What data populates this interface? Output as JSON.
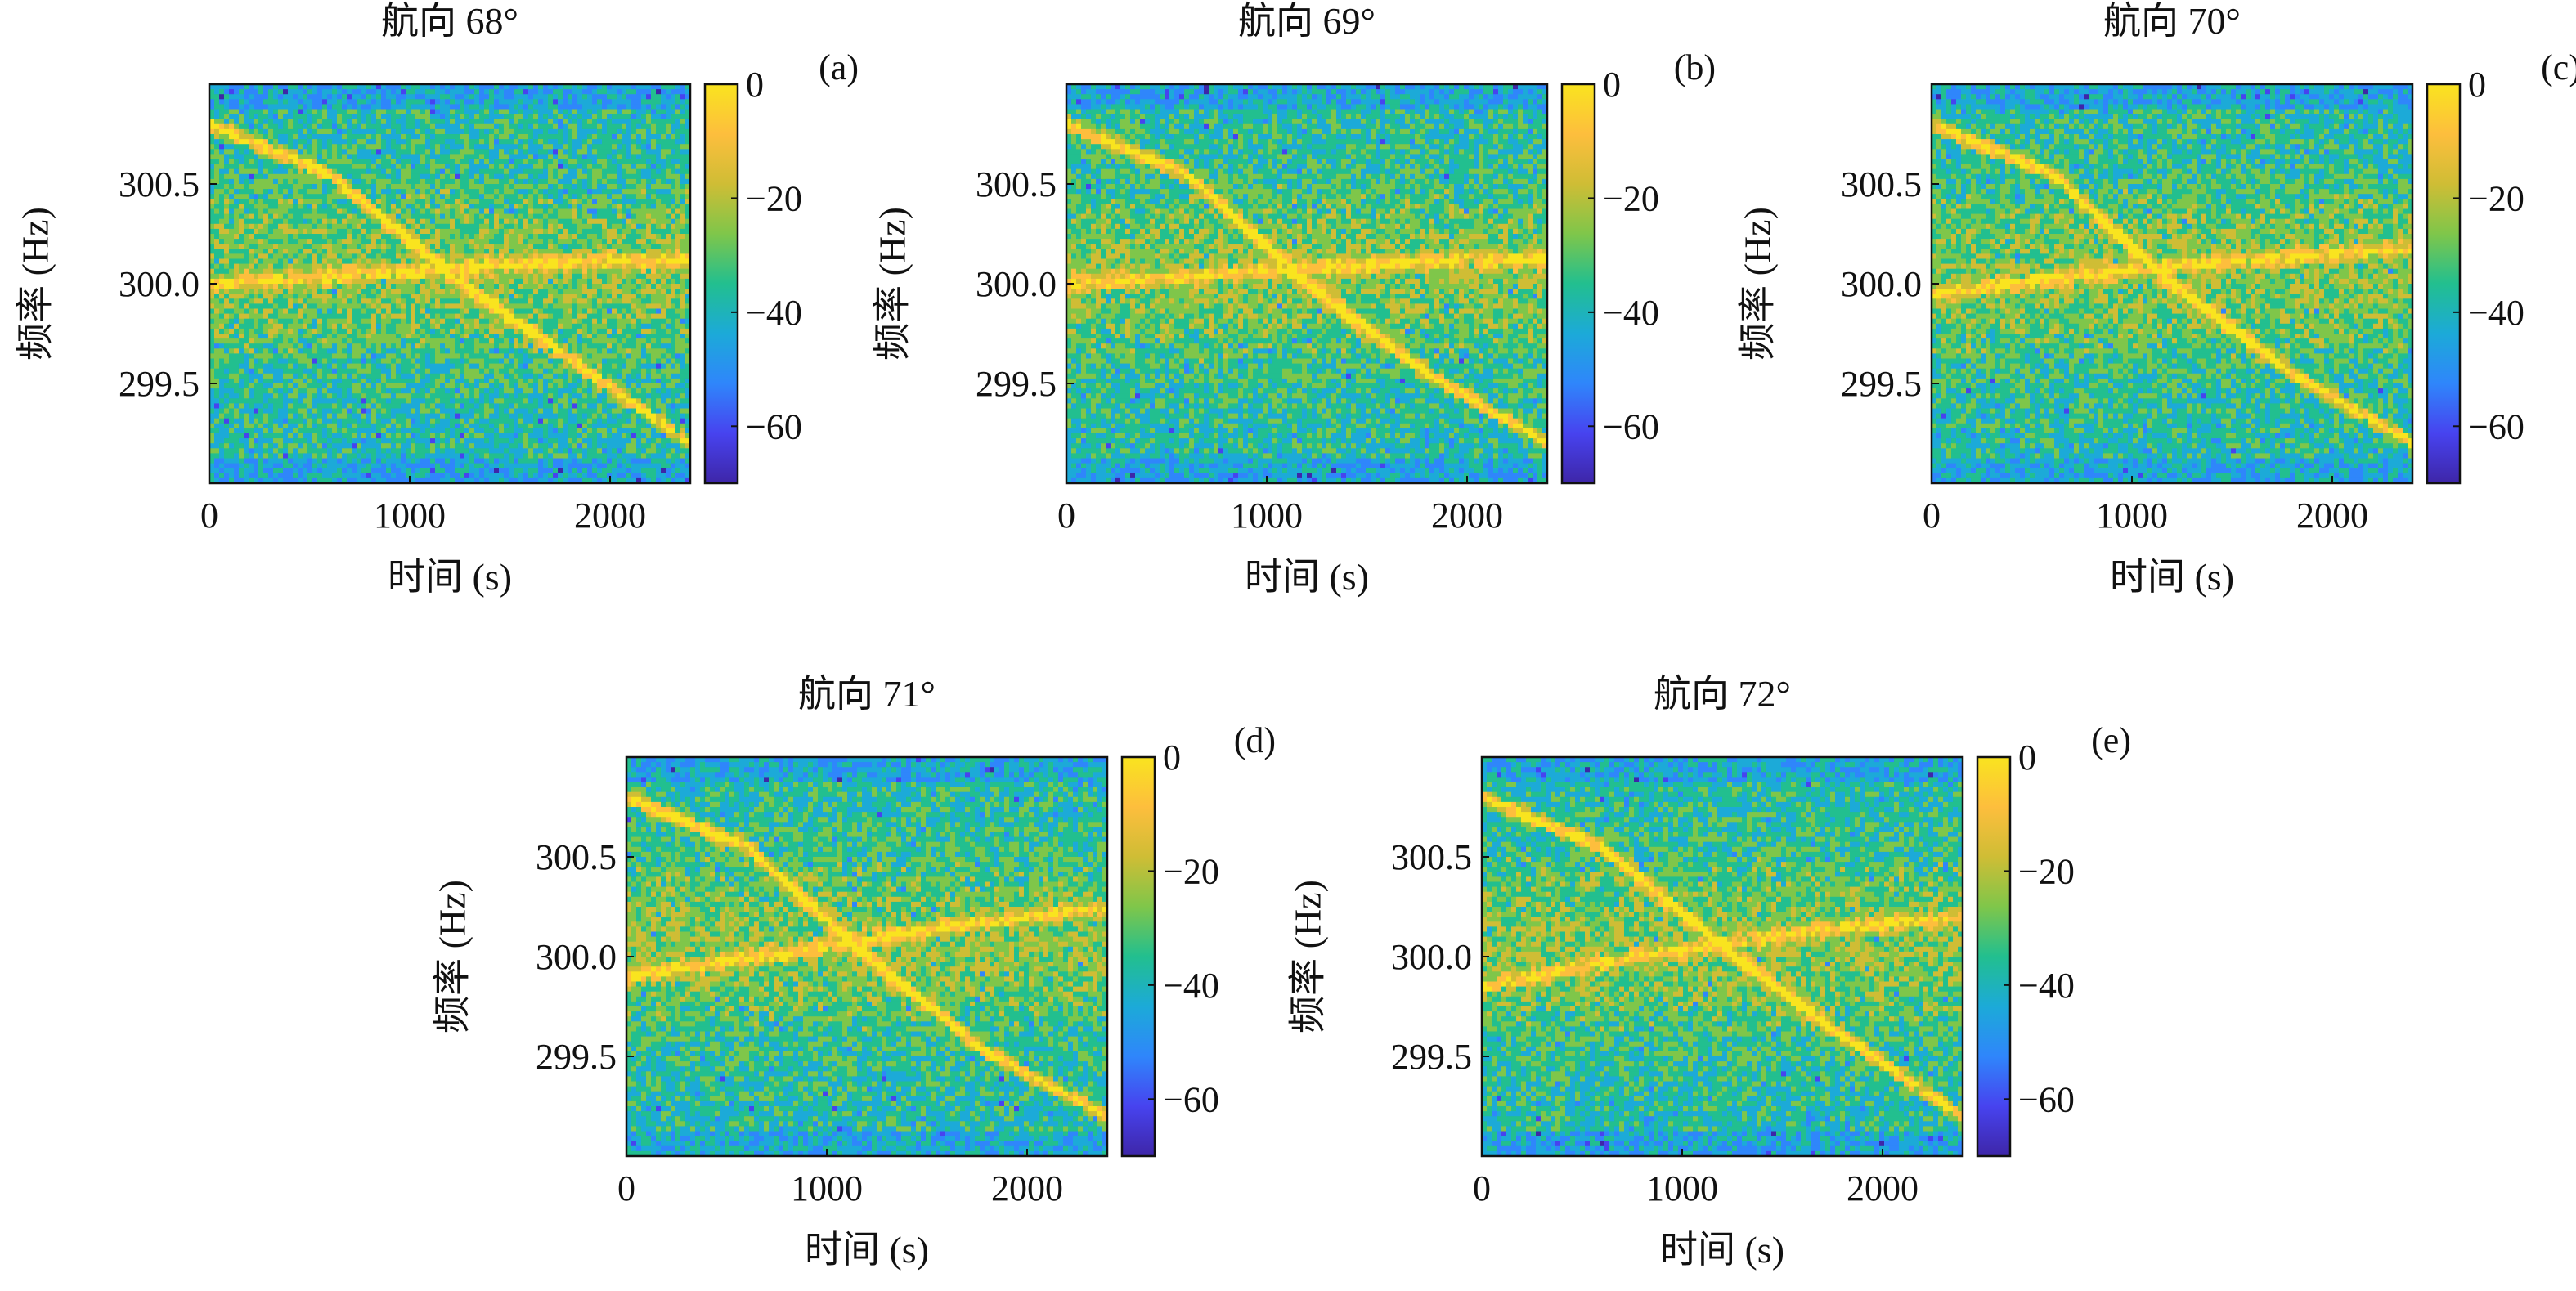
{
  "colormap": [
    "#3e26a8",
    "#4743ef",
    "#2f86fb",
    "#1caad8",
    "#22bf8f",
    "#7fc64a",
    "#cfbd35",
    "#fdbe3d",
    "#f9e41f"
  ],
  "chart_data": [
    {
      "type": "heatmap",
      "panel": "(a)",
      "title": "航向 68°",
      "xlabel": "时间 (s)",
      "ylabel": "频率 (Hz)",
      "xlim": [
        0,
        2400
      ],
      "ylim": [
        299.0,
        301.0
      ],
      "xticks": [
        0,
        1000,
        2000
      ],
      "xtick_labels": [
        "0",
        "1000",
        "2000"
      ],
      "yticks": [
        299.5,
        300.0,
        300.5
      ],
      "ytick_labels": [
        "299.5",
        "300.0",
        "300.5"
      ],
      "colorbar": {
        "ticks": [
          0,
          -20,
          -40,
          -60
        ],
        "tick_labels": [
          "0",
          "−20",
          "−40",
          "−60"
        ],
        "range": [
          -70,
          0
        ]
      },
      "ridge_lines": [
        {
          "x": [
            0,
            600,
            1200,
            1800,
            2400
          ],
          "y": [
            300.8,
            300.55,
            300.05,
            299.62,
            299.2
          ]
        },
        {
          "x": [
            0,
            800,
            1600,
            2400
          ],
          "y": [
            300.0,
            300.05,
            300.1,
            300.12
          ]
        }
      ]
    },
    {
      "type": "heatmap",
      "panel": "(b)",
      "title": "航向 69°",
      "xlabel": "时间 (s)",
      "ylabel": "频率 (Hz)",
      "xlim": [
        0,
        2400
      ],
      "ylim": [
        299.0,
        301.0
      ],
      "xticks": [
        0,
        1000,
        2000
      ],
      "xtick_labels": [
        "0",
        "1000",
        "2000"
      ],
      "yticks": [
        299.5,
        300.0,
        300.5
      ],
      "ytick_labels": [
        "299.5",
        "300.0",
        "300.5"
      ],
      "colorbar": {
        "ticks": [
          0,
          -20,
          -40,
          -60
        ],
        "tick_labels": [
          "0",
          "−20",
          "−40",
          "−60"
        ],
        "range": [
          -70,
          0
        ]
      },
      "ridge_lines": [
        {
          "x": [
            0,
            600,
            1200,
            1800,
            2400
          ],
          "y": [
            300.8,
            300.55,
            300.0,
            299.55,
            299.2
          ]
        },
        {
          "x": [
            0,
            800,
            1600,
            2400
          ],
          "y": [
            300.0,
            300.05,
            300.1,
            300.12
          ]
        }
      ]
    },
    {
      "type": "heatmap",
      "panel": "(c)",
      "title": "航向 70°",
      "xlabel": "时间 (s)",
      "ylabel": "频率 (Hz)",
      "xlim": [
        0,
        2400
      ],
      "ylim": [
        299.0,
        301.0
      ],
      "xticks": [
        0,
        1000,
        2000
      ],
      "xtick_labels": [
        "0",
        "1000",
        "2000"
      ],
      "yticks": [
        299.5,
        300.0,
        300.5
      ],
      "ytick_labels": [
        "299.5",
        "300.0",
        "300.5"
      ],
      "colorbar": {
        "ticks": [
          0,
          -20,
          -40,
          -60
        ],
        "tick_labels": [
          "0",
          "−20",
          "−40",
          "−60"
        ],
        "range": [
          -70,
          0
        ]
      },
      "ridge_lines": [
        {
          "x": [
            0,
            600,
            1200,
            1800,
            2400
          ],
          "y": [
            300.8,
            300.55,
            300.0,
            299.55,
            299.2
          ]
        },
        {
          "x": [
            0,
            800,
            1600,
            2400
          ],
          "y": [
            299.95,
            300.05,
            300.12,
            300.18
          ]
        }
      ]
    },
    {
      "type": "heatmap",
      "panel": "(d)",
      "title": "航向 71°",
      "xlabel": "时间 (s)",
      "ylabel": "频率 (Hz)",
      "xlim": [
        0,
        2400
      ],
      "ylim": [
        299.0,
        301.0
      ],
      "xticks": [
        0,
        1000,
        2000
      ],
      "xtick_labels": [
        "0",
        "1000",
        "2000"
      ],
      "yticks": [
        299.5,
        300.0,
        300.5
      ],
      "ytick_labels": [
        "299.5",
        "300.0",
        "300.5"
      ],
      "colorbar": {
        "ticks": [
          0,
          -20,
          -40,
          -60
        ],
        "tick_labels": [
          "0",
          "−20",
          "−40",
          "−60"
        ],
        "range": [
          -70,
          0
        ]
      },
      "ridge_lines": [
        {
          "x": [
            0,
            600,
            1200,
            1800,
            2400
          ],
          "y": [
            300.8,
            300.55,
            300.0,
            299.52,
            299.2
          ]
        },
        {
          "x": [
            0,
            800,
            1600,
            2400
          ],
          "y": [
            299.9,
            300.02,
            300.15,
            300.25
          ]
        }
      ]
    },
    {
      "type": "heatmap",
      "panel": "(e)",
      "title": "航向 72°",
      "xlabel": "时间 (s)",
      "ylabel": "频率 (Hz)",
      "xlim": [
        0,
        2400
      ],
      "ylim": [
        299.0,
        301.0
      ],
      "xticks": [
        0,
        1000,
        2000
      ],
      "xtick_labels": [
        "0",
        "1000",
        "2000"
      ],
      "yticks": [
        299.5,
        300.0,
        300.5
      ],
      "ytick_labels": [
        "299.5",
        "300.0",
        "300.5"
      ],
      "colorbar": {
        "ticks": [
          0,
          -20,
          -40,
          -60
        ],
        "tick_labels": [
          "0",
          "−20",
          "−40",
          "−60"
        ],
        "range": [
          -70,
          0
        ]
      },
      "ridge_lines": [
        {
          "x": [
            0,
            600,
            1200,
            1800,
            2400
          ],
          "y": [
            300.8,
            300.55,
            300.05,
            299.6,
            299.2
          ]
        },
        {
          "x": [
            0,
            800,
            1600,
            2400
          ],
          "y": [
            299.85,
            300.0,
            300.12,
            300.2
          ]
        }
      ]
    }
  ]
}
